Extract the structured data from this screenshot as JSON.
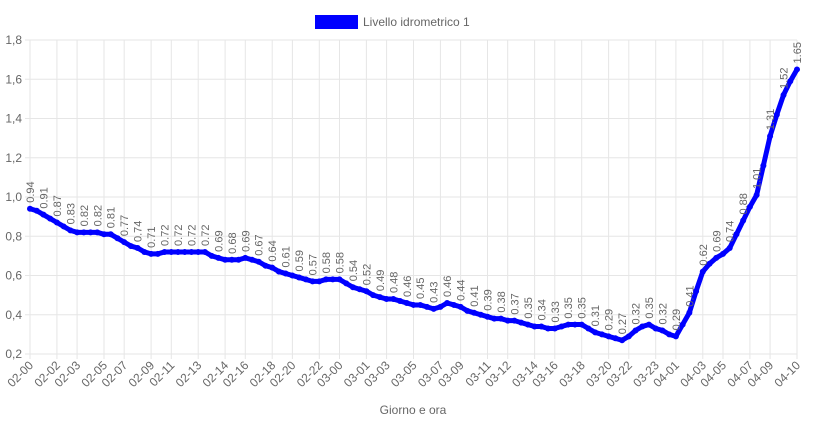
{
  "chart_data": {
    "type": "line",
    "x_label": "Giorno e ora",
    "categories": [
      "02-00",
      null,
      null,
      null,
      "02-02",
      null,
      null,
      "02-03",
      null,
      null,
      null,
      "02-05",
      null,
      null,
      "02-07",
      null,
      null,
      null,
      "02-09",
      null,
      null,
      "02-11",
      null,
      null,
      null,
      "02-13",
      null,
      null,
      null,
      "02-14",
      null,
      null,
      "02-16",
      null,
      null,
      null,
      "02-18",
      null,
      null,
      "02-20",
      null,
      null,
      null,
      "02-22",
      null,
      null,
      "03-00",
      null,
      null,
      null,
      "03-01",
      null,
      null,
      "03-03",
      null,
      null,
      null,
      "03-05",
      null,
      null,
      null,
      "03-07",
      null,
      null,
      "03-09",
      null,
      null,
      null,
      "03-11",
      null,
      null,
      "03-12",
      null,
      null,
      null,
      "03-14",
      null,
      null,
      "03-16",
      null,
      null,
      null,
      "03-18",
      null,
      null,
      null,
      "03-20",
      null,
      null,
      "03-22",
      null,
      null,
      null,
      "03-23",
      null,
      null,
      "04-01",
      null,
      null,
      null,
      "04-03",
      null,
      null,
      "04-05",
      null,
      null,
      null,
      "04-07",
      null,
      null,
      "04-09",
      null,
      null,
      null,
      "04-10"
    ],
    "series": [
      {
        "name": "Livello idrometrico 1",
        "color": "#0000ff",
        "values": [
          0.94,
          0.93,
          0.91,
          0.89,
          0.87,
          0.85,
          0.83,
          0.82,
          0.82,
          0.82,
          0.82,
          0.81,
          0.81,
          0.79,
          0.77,
          0.75,
          0.74,
          0.72,
          0.71,
          0.71,
          0.72,
          0.72,
          0.72,
          0.72,
          0.72,
          0.72,
          0.72,
          0.7,
          0.69,
          0.68,
          0.68,
          0.68,
          0.69,
          0.68,
          0.67,
          0.65,
          0.64,
          0.62,
          0.61,
          0.6,
          0.59,
          0.58,
          0.57,
          0.57,
          0.58,
          0.58,
          0.58,
          0.56,
          0.54,
          0.53,
          0.52,
          0.5,
          0.49,
          0.48,
          0.48,
          0.47,
          0.46,
          0.45,
          0.45,
          0.44,
          0.43,
          0.44,
          0.46,
          0.45,
          0.44,
          0.42,
          0.41,
          0.4,
          0.39,
          0.38,
          0.38,
          0.37,
          0.37,
          0.36,
          0.35,
          0.34,
          0.34,
          0.33,
          0.33,
          0.34,
          0.35,
          0.35,
          0.35,
          0.33,
          0.31,
          0.3,
          0.29,
          0.28,
          0.27,
          0.29,
          0.32,
          0.34,
          0.35,
          0.33,
          0.32,
          0.3,
          0.29,
          0.35,
          0.41,
          0.52,
          0.62,
          0.66,
          0.69,
          0.71,
          0.74,
          0.81,
          0.88,
          0.95,
          1.01,
          1.16,
          1.31,
          1.42,
          1.52,
          1.59,
          1.65
        ]
      }
    ],
    "ylim": [
      0.2,
      1.8
    ],
    "yticks": [
      {
        "value": 0.2,
        "label": "0,2"
      },
      {
        "value": 0.4,
        "label": "0,4"
      },
      {
        "value": 0.6,
        "label": "0,6"
      },
      {
        "value": 0.8,
        "label": "0,8"
      },
      {
        "value": 1.0,
        "label": "1,0"
      },
      {
        "value": 1.2,
        "label": "1,2"
      },
      {
        "value": 1.4,
        "label": "1,4"
      },
      {
        "value": 1.6,
        "label": "1,6"
      },
      {
        "value": 1.8,
        "label": "1,8"
      }
    ],
    "grid": true
  }
}
